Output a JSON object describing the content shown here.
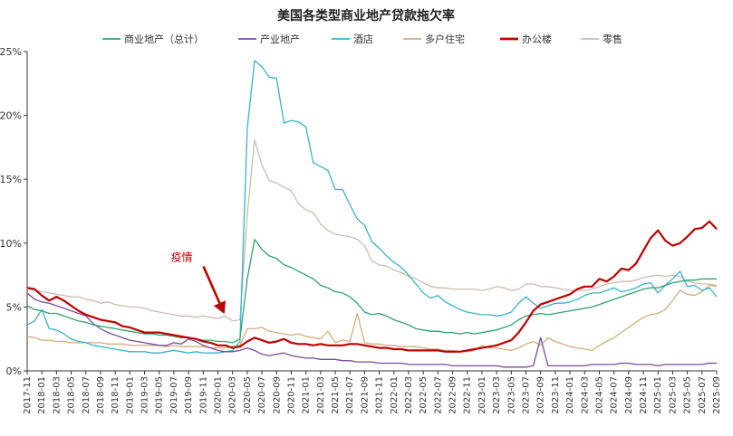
{
  "chart_data": {
    "type": "line",
    "title": "美国各类型商业地产贷款拖欠率",
    "xlabel": "",
    "ylabel": "",
    "ylim": [
      0,
      25
    ],
    "yticks": [
      "0%",
      "5%",
      "10%",
      "15%",
      "20%",
      "25%"
    ],
    "ytick_values": [
      0,
      5,
      10,
      15,
      20,
      25
    ],
    "grid": false,
    "legend_position": "top",
    "x": [
      "2017-11",
      "2017-12",
      "2018-01",
      "2018-02",
      "2018-03",
      "2018-04",
      "2018-05",
      "2018-06",
      "2018-07",
      "2018-08",
      "2018-09",
      "2018-10",
      "2018-11",
      "2018-12",
      "2019-01",
      "2019-02",
      "2019-03",
      "2019-04",
      "2019-05",
      "2019-06",
      "2019-07",
      "2019-08",
      "2019-09",
      "2019-10",
      "2019-11",
      "2019-12",
      "2020-01",
      "2020-02",
      "2020-03",
      "2020-04",
      "2020-05",
      "2020-06",
      "2020-07",
      "2020-08",
      "2020-09",
      "2020-10",
      "2020-11",
      "2020-12",
      "2021-01",
      "2021-02",
      "2021-03",
      "2021-04",
      "2021-05",
      "2021-06",
      "2021-07",
      "2021-08",
      "2021-09",
      "2021-10",
      "2021-11",
      "2021-12",
      "2022-01",
      "2022-02",
      "2022-03",
      "2022-04",
      "2022-05",
      "2022-06",
      "2022-07",
      "2022-08",
      "2022-09",
      "2022-10",
      "2022-11",
      "2022-12",
      "2023-01",
      "2023-02",
      "2023-03",
      "2023-04",
      "2023-05",
      "2023-06",
      "2023-07",
      "2023-08",
      "2023-09",
      "2023-10",
      "2023-11",
      "2023-12",
      "2024-01",
      "2024-02",
      "2024-03",
      "2024-04",
      "2024-05",
      "2024-06",
      "2024-07",
      "2024-08",
      "2024-09",
      "2024-10",
      "2024-11",
      "2024-12",
      "2025-01",
      "2025-02",
      "2025-03",
      "2025-04",
      "2025-05",
      "2025-06",
      "2025-07",
      "2025-08",
      "2025-09"
    ],
    "xtick_labels": [
      "2017-11",
      "2018-01",
      "2018-03",
      "2018-05",
      "2018-07",
      "2018-09",
      "2018-11",
      "2019-01",
      "2019-03",
      "2019-05",
      "2019-07",
      "2019-09",
      "2019-11",
      "2020-01",
      "2020-03",
      "2020-05",
      "2020-07",
      "2020-09",
      "2020-11",
      "2021-01",
      "2021-03",
      "2021-05",
      "2021-07",
      "2021-09",
      "2021-11",
      "2022-01",
      "2022-03",
      "2022-05",
      "2022-07",
      "2022-09",
      "2022-11",
      "2023-01",
      "2023-03",
      "2023-05",
      "2023-07",
      "2023-09",
      "2023-11",
      "2024-01",
      "2024-03",
      "2024-05",
      "2024-07",
      "2024-09",
      "2024-11",
      "2025-01",
      "2025-03",
      "2025-05",
      "2025-07",
      "2025-09"
    ],
    "series": [
      {
        "name": "商业地产（总计）",
        "color": "#2fa36b",
        "width": 1.3,
        "values": [
          5.1,
          4.8,
          4.7,
          4.5,
          4.5,
          4.3,
          4.1,
          3.9,
          3.8,
          3.6,
          3.5,
          3.4,
          3.3,
          3.2,
          3.1,
          3.0,
          2.9,
          2.9,
          2.8,
          2.8,
          2.7,
          2.6,
          2.6,
          2.5,
          2.4,
          2.4,
          2.3,
          2.3,
          2.2,
          2.5,
          7.2,
          10.3,
          9.5,
          9.0,
          8.8,
          8.3,
          8.1,
          7.8,
          7.5,
          7.2,
          6.7,
          6.5,
          6.2,
          6.1,
          5.8,
          5.3,
          4.6,
          4.4,
          4.5,
          4.3,
          4.0,
          3.8,
          3.6,
          3.3,
          3.2,
          3.1,
          3.1,
          3.0,
          3.0,
          2.9,
          3.0,
          2.9,
          3.0,
          3.1,
          3.2,
          3.4,
          3.6,
          4.0,
          4.3,
          4.4,
          4.5,
          4.4,
          4.5,
          4.6,
          4.7,
          4.8,
          4.9,
          5.0,
          5.2,
          5.4,
          5.6,
          5.8,
          6.0,
          6.2,
          6.4,
          6.5,
          6.5,
          6.7,
          6.9,
          7.0,
          7.1,
          7.1,
          7.2,
          7.2,
          7.2
        ]
      },
      {
        "name": "产业地产",
        "color": "#7b4a9b",
        "width": 1.3,
        "values": [
          6.1,
          5.6,
          5.4,
          5.3,
          5.1,
          4.9,
          4.7,
          4.5,
          4.3,
          3.7,
          3.3,
          3.0,
          2.8,
          2.6,
          2.4,
          2.3,
          2.2,
          2.1,
          2.0,
          2.0,
          2.2,
          2.1,
          2.5,
          2.3,
          2.0,
          1.8,
          1.6,
          1.5,
          1.5,
          1.6,
          1.8,
          1.6,
          1.3,
          1.2,
          1.3,
          1.4,
          1.2,
          1.1,
          1.0,
          1.0,
          0.9,
          0.9,
          0.9,
          0.8,
          0.8,
          0.7,
          0.7,
          0.7,
          0.6,
          0.6,
          0.6,
          0.6,
          0.5,
          0.5,
          0.5,
          0.5,
          0.5,
          0.5,
          0.4,
          0.4,
          0.4,
          0.4,
          0.4,
          0.4,
          0.4,
          0.3,
          0.3,
          0.3,
          0.3,
          0.4,
          2.6,
          0.4,
          0.4,
          0.4,
          0.4,
          0.4,
          0.4,
          0.5,
          0.5,
          0.5,
          0.5,
          0.6,
          0.6,
          0.5,
          0.5,
          0.5,
          0.4,
          0.5,
          0.5,
          0.5,
          0.5,
          0.5,
          0.5,
          0.6,
          0.6
        ]
      },
      {
        "name": "酒店",
        "color": "#35b4cc",
        "width": 1.3,
        "values": [
          3.6,
          3.9,
          4.8,
          3.3,
          3.2,
          2.9,
          2.5,
          2.3,
          2.2,
          2.0,
          1.9,
          1.8,
          1.7,
          1.6,
          1.5,
          1.5,
          1.5,
          1.4,
          1.4,
          1.5,
          1.6,
          1.5,
          1.4,
          1.5,
          1.4,
          1.4,
          1.4,
          1.5,
          1.6,
          2.3,
          19.0,
          24.3,
          23.8,
          23.0,
          22.9,
          19.4,
          19.6,
          19.5,
          19.1,
          16.3,
          16.0,
          15.7,
          14.2,
          14.2,
          13.0,
          11.9,
          11.4,
          10.1,
          9.6,
          9.0,
          8.5,
          8.1,
          7.5,
          6.8,
          6.1,
          5.7,
          5.9,
          5.4,
          5.1,
          4.8,
          4.6,
          4.5,
          4.4,
          4.4,
          4.3,
          4.4,
          4.6,
          5.3,
          5.8,
          5.3,
          4.9,
          5.1,
          5.3,
          5.3,
          5.4,
          5.6,
          5.9,
          6.1,
          6.1,
          6.3,
          6.5,
          6.2,
          6.3,
          6.5,
          6.8,
          6.9,
          6.1,
          6.7,
          7.2,
          7.8,
          6.6,
          6.7,
          6.3,
          6.5,
          5.8
        ]
      },
      {
        "name": "多户住宅",
        "color": "#d6ac7c",
        "width": 1.3,
        "values": [
          2.7,
          2.6,
          2.4,
          2.4,
          2.3,
          2.3,
          2.2,
          2.2,
          2.2,
          2.2,
          2.2,
          2.1,
          2.1,
          2.1,
          2.0,
          2.0,
          2.0,
          2.0,
          2.0,
          1.9,
          2.0,
          1.9,
          1.9,
          1.9,
          1.9,
          1.8,
          1.8,
          1.8,
          1.9,
          2.0,
          3.3,
          3.3,
          3.4,
          3.1,
          3.0,
          2.9,
          2.8,
          2.9,
          2.7,
          2.6,
          2.5,
          3.1,
          2.2,
          2.4,
          2.3,
          4.5,
          2.2,
          2.1,
          2.1,
          2.0,
          2.0,
          1.9,
          1.9,
          1.9,
          1.8,
          1.7,
          1.7,
          1.6,
          1.6,
          1.5,
          1.5,
          1.6,
          2.0,
          1.8,
          1.8,
          1.7,
          1.6,
          1.8,
          2.1,
          2.3,
          2.0,
          2.6,
          2.3,
          2.1,
          1.9,
          1.8,
          1.7,
          1.6,
          2.0,
          2.3,
          2.6,
          3.0,
          3.4,
          3.8,
          4.2,
          4.4,
          4.5,
          4.8,
          5.5,
          6.3,
          6.0,
          5.9,
          6.2,
          6.7,
          6.6
        ]
      },
      {
        "name": "办公楼",
        "color": "#c00000",
        "width": 2.2,
        "values": [
          6.5,
          6.4,
          5.9,
          5.5,
          5.8,
          5.5,
          5.1,
          4.7,
          4.4,
          4.2,
          4.0,
          3.9,
          3.8,
          3.5,
          3.4,
          3.2,
          3.0,
          3.0,
          3.0,
          2.9,
          2.8,
          2.7,
          2.6,
          2.5,
          2.3,
          2.2,
          2.0,
          2.0,
          1.8,
          1.9,
          2.3,
          2.6,
          2.4,
          2.2,
          2.3,
          2.5,
          2.2,
          2.1,
          2.1,
          2.0,
          2.1,
          2.0,
          2.0,
          2.0,
          2.1,
          2.1,
          2.0,
          1.9,
          1.8,
          1.8,
          1.7,
          1.7,
          1.6,
          1.6,
          1.6,
          1.6,
          1.6,
          1.5,
          1.5,
          1.5,
          1.6,
          1.7,
          1.8,
          1.9,
          2.0,
          2.2,
          2.4,
          3.0,
          3.8,
          4.7,
          5.2,
          5.4,
          5.6,
          5.8,
          6.0,
          6.4,
          6.6,
          6.6,
          7.2,
          7.0,
          7.4,
          8.0,
          7.9,
          8.4,
          9.4,
          10.4,
          11.0,
          10.2,
          9.8,
          10.0,
          10.5,
          11.1,
          11.2,
          11.7,
          11.1
        ]
      },
      {
        "name": "零售",
        "color": "#ccbcae",
        "width": 1.3,
        "values": [
          6.4,
          6.3,
          6.2,
          6.1,
          6.0,
          5.9,
          5.8,
          5.8,
          5.6,
          5.5,
          5.3,
          5.4,
          5.2,
          5.1,
          5.0,
          5.0,
          4.9,
          4.7,
          4.6,
          4.5,
          4.4,
          4.3,
          4.3,
          4.2,
          4.3,
          4.2,
          4.1,
          4.3,
          3.9,
          4.0,
          12.2,
          18.1,
          16.1,
          14.9,
          14.7,
          14.4,
          14.1,
          13.1,
          12.6,
          12.4,
          11.5,
          11.0,
          10.7,
          10.6,
          10.5,
          10.3,
          9.8,
          8.6,
          8.3,
          8.2,
          7.9,
          7.7,
          7.4,
          7.2,
          6.9,
          6.6,
          6.5,
          6.5,
          6.4,
          6.4,
          6.4,
          6.4,
          6.3,
          6.4,
          6.6,
          6.5,
          6.3,
          6.4,
          6.8,
          6.8,
          6.6,
          6.6,
          6.5,
          6.4,
          6.3,
          6.3,
          6.3,
          6.4,
          6.6,
          6.8,
          6.9,
          7.0,
          7.0,
          7.1,
          7.3,
          7.4,
          7.5,
          7.4,
          7.5,
          7.4,
          7.0,
          6.9,
          6.8,
          6.8,
          6.7
        ]
      }
    ],
    "annotation": {
      "text": "疫情",
      "x": "2020-02",
      "y": 1.8
    }
  }
}
